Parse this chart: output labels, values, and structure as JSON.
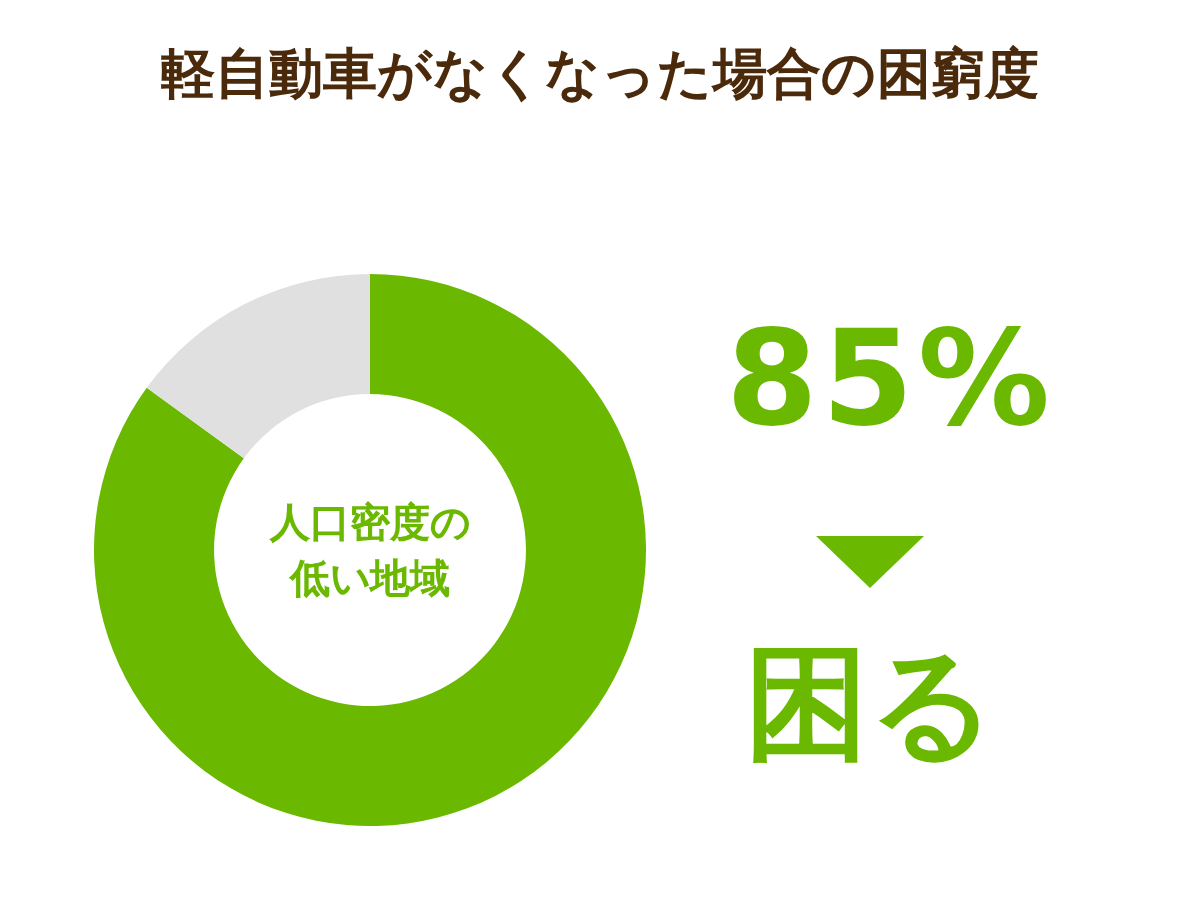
{
  "chart_data": {
    "type": "donut",
    "title": "軽自動車がなくなった場合の困窮度",
    "categories": [
      null,
      null
    ],
    "values": [
      85,
      15
    ],
    "colors": [
      "#6ab800",
      "#e0e0e0"
    ],
    "value_labels": [
      "85%",
      null
    ],
    "annotations": [
      "人口密度の低い地域",
      "困る"
    ]
  }
}
